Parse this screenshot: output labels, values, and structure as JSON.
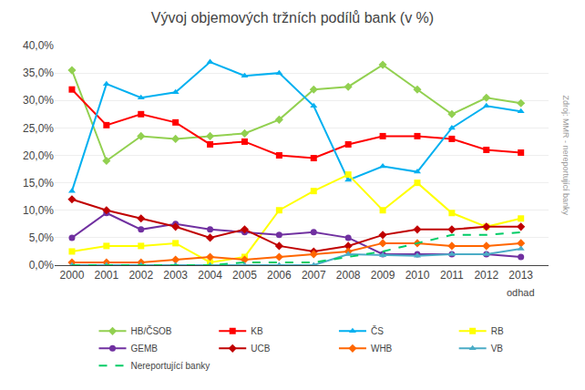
{
  "chart_data": {
    "type": "line",
    "title": "Vývoj objemových tržních podílů bank (v %)",
    "x": [
      2000,
      2001,
      2002,
      2003,
      2004,
      2005,
      2006,
      2007,
      2008,
      2009,
      2010,
      2011,
      2012,
      2013
    ],
    "xlim": [
      1999.5,
      2013.8
    ],
    "xticks": [
      2000,
      2001,
      2002,
      2003,
      2004,
      2005,
      2006,
      2007,
      2008,
      2009,
      2010,
      2011,
      2012,
      2013
    ],
    "ylim": [
      0,
      40
    ],
    "yticks": [
      {
        "value": 0.0,
        "label": "0,0%"
      },
      {
        "value": 5.0,
        "label": "5,0%"
      },
      {
        "value": 10.0,
        "label": "10,0%"
      },
      {
        "value": 15.0,
        "label": "15,0%"
      },
      {
        "value": 20.0,
        "label": "20,0%"
      },
      {
        "value": 25.0,
        "label": "25,0%"
      },
      {
        "value": 30.0,
        "label": "30,0%"
      },
      {
        "value": 35.0,
        "label": "35,0%"
      },
      {
        "value": 40.0,
        "label": "40,0%"
      }
    ],
    "grid": "y",
    "legend": "bottom",
    "annotations": [
      {
        "text": "odhad",
        "x": 2013
      },
      {
        "text": "Zdroj: MMR - nereportující banky"
      }
    ],
    "series": [
      {
        "name": "HB/ČSOB",
        "color": "#92D050",
        "marker": "diamond",
        "line_style": "solid",
        "values": [
          35.5,
          19.0,
          23.5,
          23.0,
          23.5,
          24.0,
          26.5,
          32.0,
          32.5,
          36.5,
          32.0,
          27.5,
          30.5,
          29.5
        ]
      },
      {
        "name": "KB",
        "color": "#FF0000",
        "marker": "square",
        "line_style": "solid",
        "values": [
          32.0,
          25.5,
          27.5,
          26.0,
          22.0,
          22.5,
          20.0,
          19.5,
          22.0,
          23.5,
          23.5,
          23.0,
          21.0,
          20.5
        ]
      },
      {
        "name": "ČS",
        "color": "#00B0F0",
        "marker": "triangle-up",
        "line_style": "solid",
        "values": [
          13.5,
          33.0,
          30.5,
          31.5,
          37.0,
          34.5,
          35.0,
          29.0,
          15.5,
          18.0,
          17.0,
          25.0,
          29.0,
          28.0
        ]
      },
      {
        "name": "RB",
        "color": "#FFFF00",
        "marker": "square",
        "line_style": "solid",
        "values": [
          2.5,
          3.5,
          3.5,
          4.0,
          0.5,
          1.5,
          10.0,
          13.5,
          16.5,
          10.0,
          15.0,
          9.5,
          7.0,
          8.5
        ]
      },
      {
        "name": "GEMB",
        "color": "#7030A0",
        "marker": "circle",
        "line_style": "solid",
        "values": [
          5.0,
          9.5,
          6.5,
          7.5,
          6.5,
          6.0,
          5.5,
          6.0,
          5.0,
          2.0,
          2.0,
          2.0,
          2.0,
          1.5
        ]
      },
      {
        "name": "UCB",
        "color": "#C00000",
        "marker": "diamond",
        "line_style": "solid",
        "values": [
          12.0,
          10.0,
          8.5,
          7.0,
          5.0,
          6.5,
          3.5,
          2.5,
          3.5,
          5.5,
          6.5,
          6.5,
          7.0,
          7.0
        ]
      },
      {
        "name": "WHB",
        "color": "#FF6600",
        "marker": "diamond",
        "line_style": "solid",
        "values": [
          0.5,
          0.5,
          0.5,
          1.0,
          1.5,
          1.0,
          1.5,
          2.0,
          2.5,
          4.0,
          4.0,
          3.5,
          3.5,
          4.0
        ]
      },
      {
        "name": "VB",
        "color": "#4BACC6",
        "marker": "triangle-up",
        "line_style": "solid",
        "values": [
          0.0,
          0.0,
          0.0,
          0.0,
          0.0,
          0.0,
          0.0,
          0.0,
          2.0,
          1.8,
          1.7,
          2.0,
          2.0,
          3.0
        ]
      },
      {
        "name": "Nereportující banky",
        "color": "#00CC66",
        "marker": "none",
        "line_style": "dashed",
        "values": [
          0.0,
          0.0,
          0.0,
          0.0,
          0.0,
          0.5,
          0.5,
          0.5,
          1.5,
          2.5,
          4.0,
          5.5,
          5.5,
          6.0
        ]
      }
    ]
  }
}
